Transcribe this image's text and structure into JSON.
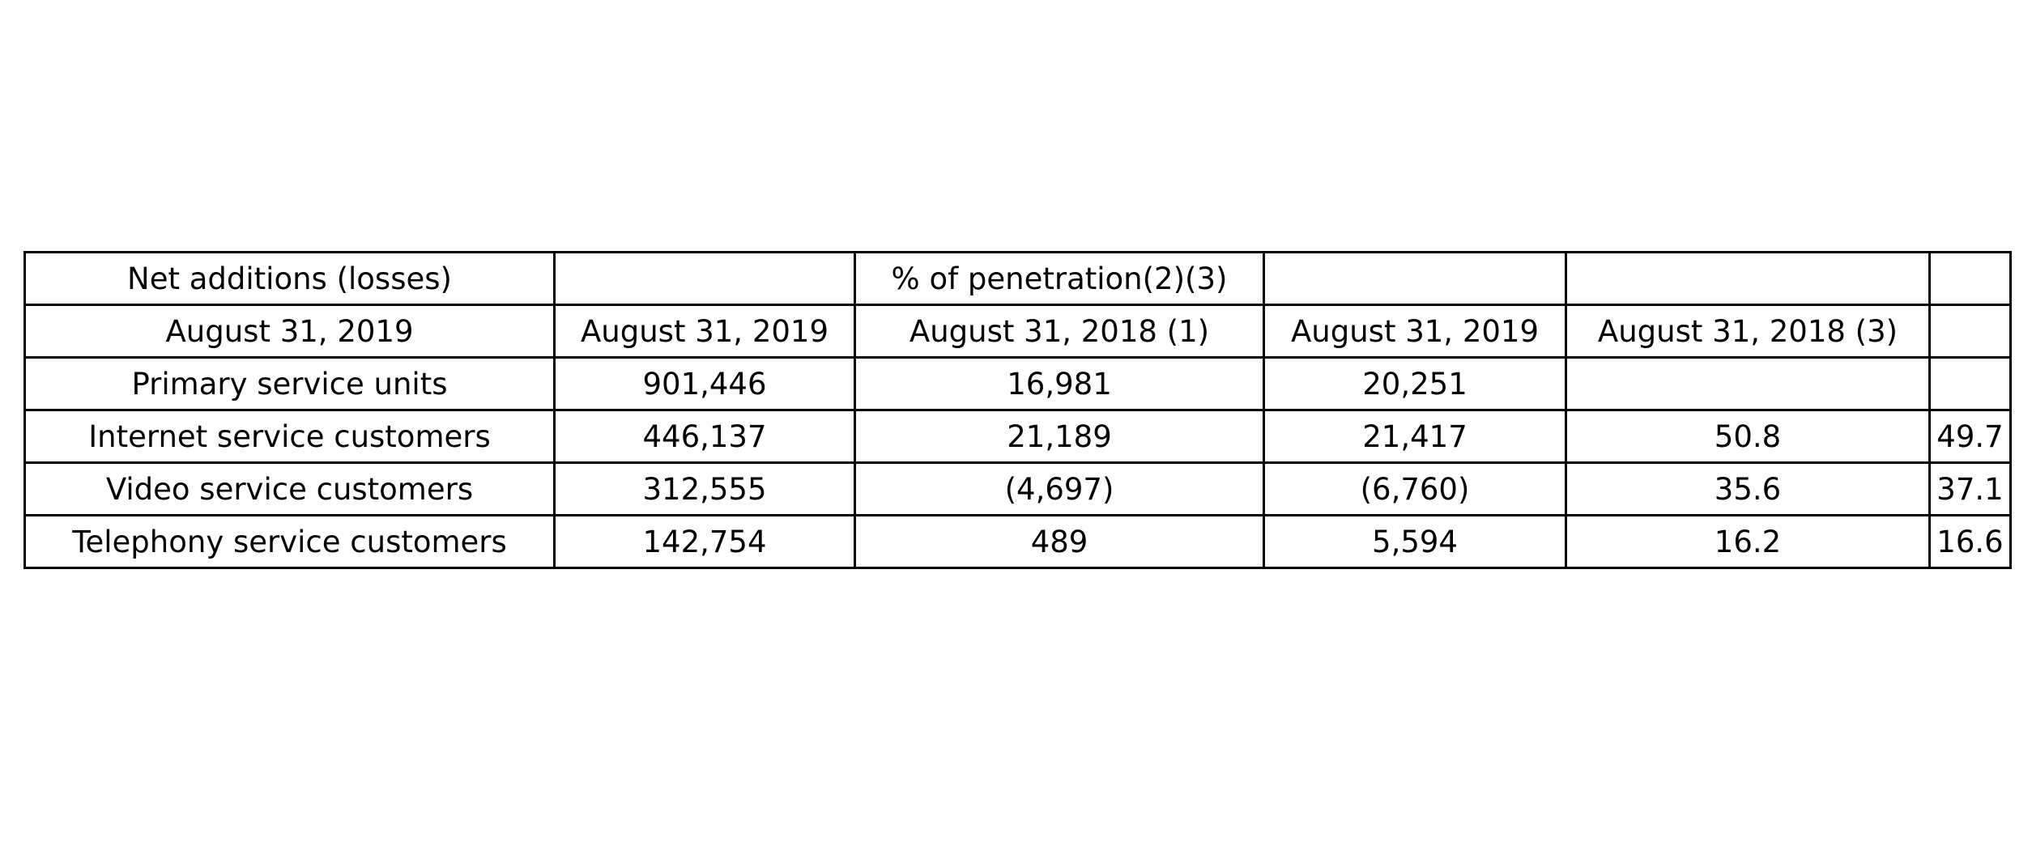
{
  "chart_data": {
    "type": "table",
    "rows": [
      [
        "Net additions (losses)",
        "",
        "% of penetration(2)(3)",
        "",
        "",
        ""
      ],
      [
        "August 31, 2019",
        "August 31, 2019",
        "August 31, 2018 (1)",
        "August 31, 2019",
        "August 31, 2018 (3)",
        ""
      ],
      [
        "Primary service units",
        "901,446",
        "16,981",
        "20,251",
        "",
        ""
      ],
      [
        "Internet service customers",
        "446,137",
        "21,189",
        "21,417",
        "50.8",
        "49.7"
      ],
      [
        "Video service customers",
        "312,555",
        "(4,697)",
        "(6,760)",
        "35.6",
        "37.1"
      ],
      [
        "Telephony service customers",
        "142,754",
        "489",
        "5,594",
        "16.2",
        "16.6"
      ]
    ]
  }
}
